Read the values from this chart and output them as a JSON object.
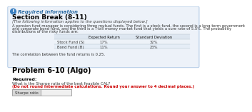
{
  "required_info_label": "Required information",
  "section_break_title": "Section Break (8-11)",
  "italic_text": "[The following information applies to the questions displayed below.]",
  "body_line1": "A pension fund manager is considering three mutual funds. The first is a stock fund, the second is a long-term government",
  "body_line2": "and corporate bond fund, and the third is a T-bill money market fund that yields a sure rate of 5.5%. The probability",
  "body_line3": "distributions of the risky funds are:",
  "table_col1_header": "Expected Return",
  "table_col2_header": "Standard Deviation",
  "row1_label": "Stock Fund (S)",
  "row1_col1": "17%",
  "row1_col2": "32%",
  "row2_label": "Bond Fund (B)",
  "row2_col1": "11%",
  "row2_col2": "23%",
  "correlation_text": "The correlation between the fund returns is 0.25.",
  "problem_title": "Problem 6-10 (Algo)",
  "required_label": "Required:",
  "question_normal": "What is the Sharpe ratio of the best feasible CAL?",
  "question_bold_red": "(Do not round intermediate calculations. Round your answer to 4 decimal places.)",
  "answer_label": "Sharpe ratio",
  "bg_page": "#ffffff",
  "bg_info_box": "#edf2f9",
  "border_info": "#b8cfe8",
  "icon_color": "#3a7fc1",
  "req_info_color": "#2e6da4",
  "section_color": "#000000",
  "italic_color": "#444444",
  "body_color": "#333333",
  "table_header_bg": "#dde6f0",
  "table_row1_bg": "#edf2f8",
  "table_row2_bg": "#e5edf6",
  "bold_red": "#cc0000",
  "answer_label_bg": "#d8d8d8",
  "answer_input_bg": "#f0f0f0"
}
